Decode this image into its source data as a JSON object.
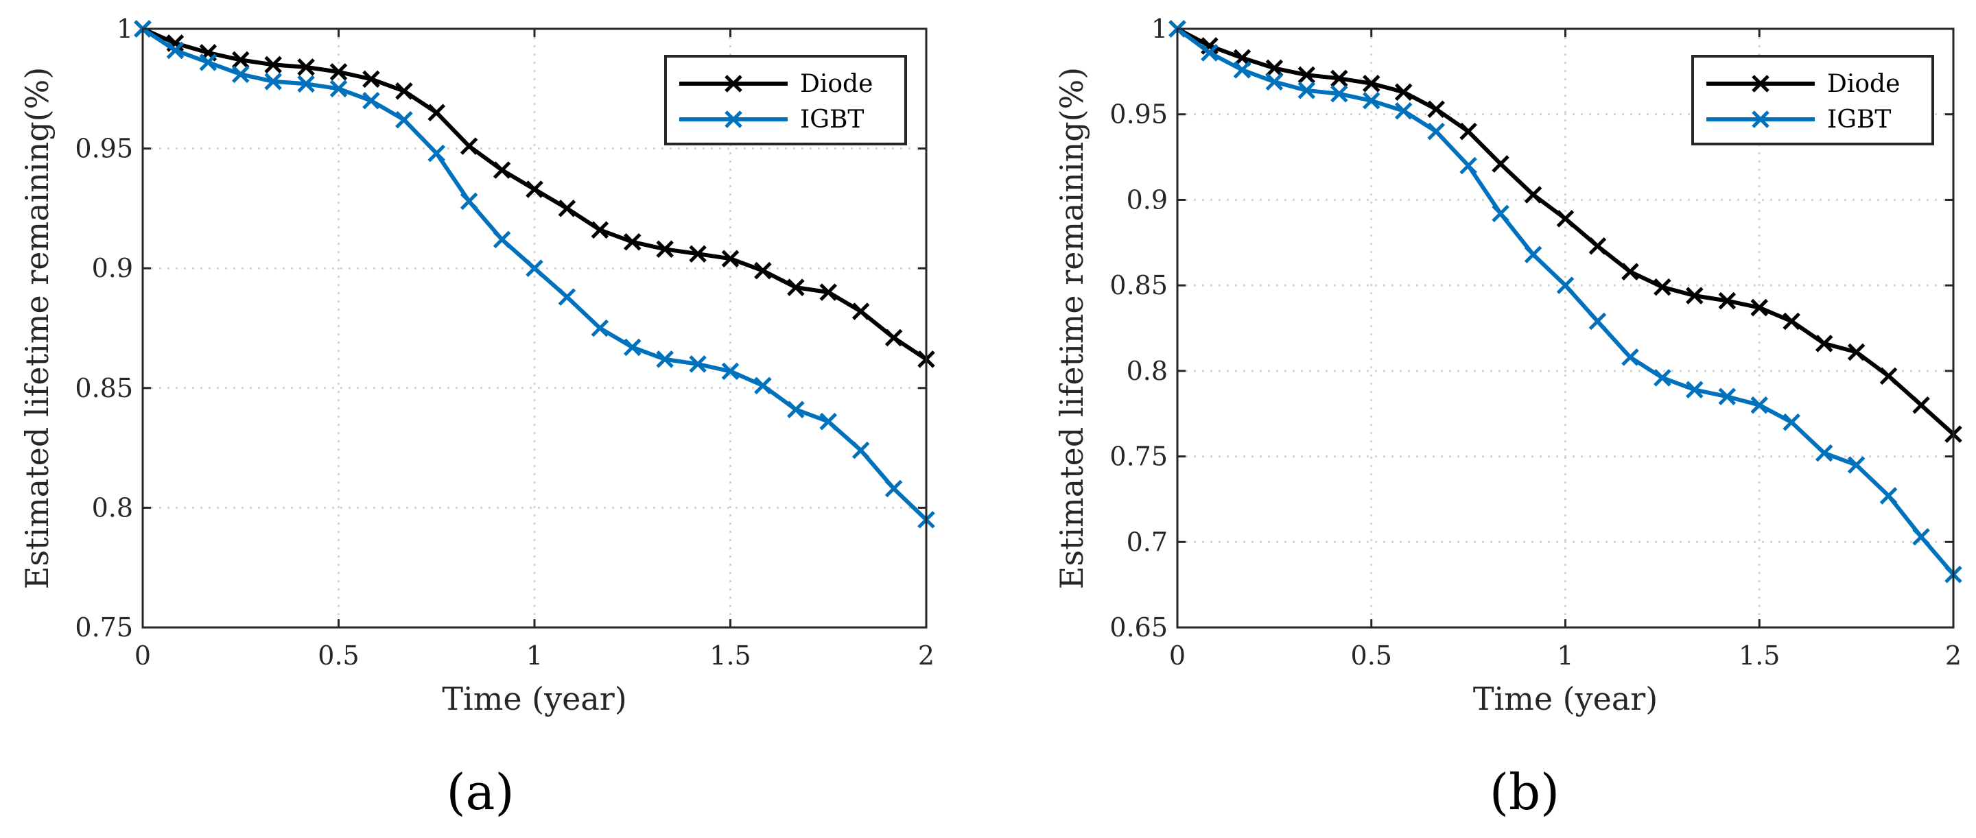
{
  "chart_data": [
    {
      "type": "line",
      "panel_label": "(a)",
      "xlabel": "Time (year)",
      "ylabel": "Estimated lifetime remaining(%)",
      "xlim": [
        0,
        2
      ],
      "ylim": [
        0.75,
        1
      ],
      "xticks": [
        0,
        0.5,
        1,
        1.5,
        2
      ],
      "xtick_labels": [
        "0",
        "0.5",
        "1",
        "1.5",
        "2"
      ],
      "yticks": [
        0.75,
        0.8,
        0.85,
        0.9,
        0.95,
        1
      ],
      "ytick_labels": [
        "0.75",
        "0.8",
        "0.85",
        "0.9",
        "0.95",
        "1"
      ],
      "grid": true,
      "legend_position": "top-right",
      "x": [
        0,
        0.083,
        0.167,
        0.25,
        0.333,
        0.417,
        0.5,
        0.583,
        0.667,
        0.75,
        0.833,
        0.917,
        1.0,
        1.083,
        1.167,
        1.25,
        1.333,
        1.417,
        1.5,
        1.583,
        1.667,
        1.75,
        1.833,
        1.917,
        2.0
      ],
      "series": [
        {
          "name": "Diode",
          "color": "#000000",
          "values": [
            1.0,
            0.994,
            0.99,
            0.987,
            0.985,
            0.984,
            0.982,
            0.979,
            0.974,
            0.965,
            0.951,
            0.941,
            0.933,
            0.925,
            0.916,
            0.911,
            0.908,
            0.906,
            0.904,
            0.899,
            0.892,
            0.89,
            0.882,
            0.871,
            0.862
          ]
        },
        {
          "name": "IGBT",
          "color": "#0072bd",
          "values": [
            1.0,
            0.991,
            0.986,
            0.981,
            0.978,
            0.977,
            0.975,
            0.97,
            0.962,
            0.948,
            0.928,
            0.912,
            0.9,
            0.888,
            0.875,
            0.867,
            0.862,
            0.86,
            0.857,
            0.851,
            0.841,
            0.836,
            0.824,
            0.808,
            0.795
          ]
        }
      ]
    },
    {
      "type": "line",
      "panel_label": "(b)",
      "xlabel": "Time (year)",
      "ylabel": "Estimated lifetime remaining(%)",
      "xlim": [
        0,
        2
      ],
      "ylim": [
        0.65,
        1
      ],
      "xticks": [
        0,
        0.5,
        1,
        1.5,
        2
      ],
      "xtick_labels": [
        "0",
        "0.5",
        "1",
        "1.5",
        "2"
      ],
      "yticks": [
        0.65,
        0.7,
        0.75,
        0.8,
        0.85,
        0.9,
        0.95,
        1
      ],
      "ytick_labels": [
        "0.65",
        "0.7",
        "0.75",
        "0.8",
        "0.85",
        "0.9",
        "0.95",
        "1"
      ],
      "grid": true,
      "legend_position": "top-right",
      "x": [
        0,
        0.083,
        0.167,
        0.25,
        0.333,
        0.417,
        0.5,
        0.583,
        0.667,
        0.75,
        0.833,
        0.917,
        1.0,
        1.083,
        1.167,
        1.25,
        1.333,
        1.417,
        1.5,
        1.583,
        1.667,
        1.75,
        1.833,
        1.917,
        2.0
      ],
      "series": [
        {
          "name": "Diode",
          "color": "#000000",
          "values": [
            1.0,
            0.99,
            0.983,
            0.977,
            0.973,
            0.971,
            0.968,
            0.963,
            0.953,
            0.94,
            0.921,
            0.903,
            0.889,
            0.873,
            0.858,
            0.849,
            0.844,
            0.841,
            0.837,
            0.829,
            0.816,
            0.811,
            0.797,
            0.78,
            0.763
          ]
        },
        {
          "name": "IGBT",
          "color": "#0072bd",
          "values": [
            1.0,
            0.986,
            0.976,
            0.969,
            0.964,
            0.962,
            0.958,
            0.952,
            0.94,
            0.92,
            0.892,
            0.868,
            0.85,
            0.829,
            0.808,
            0.796,
            0.789,
            0.785,
            0.78,
            0.77,
            0.752,
            0.745,
            0.727,
            0.703,
            0.681
          ]
        }
      ]
    }
  ]
}
